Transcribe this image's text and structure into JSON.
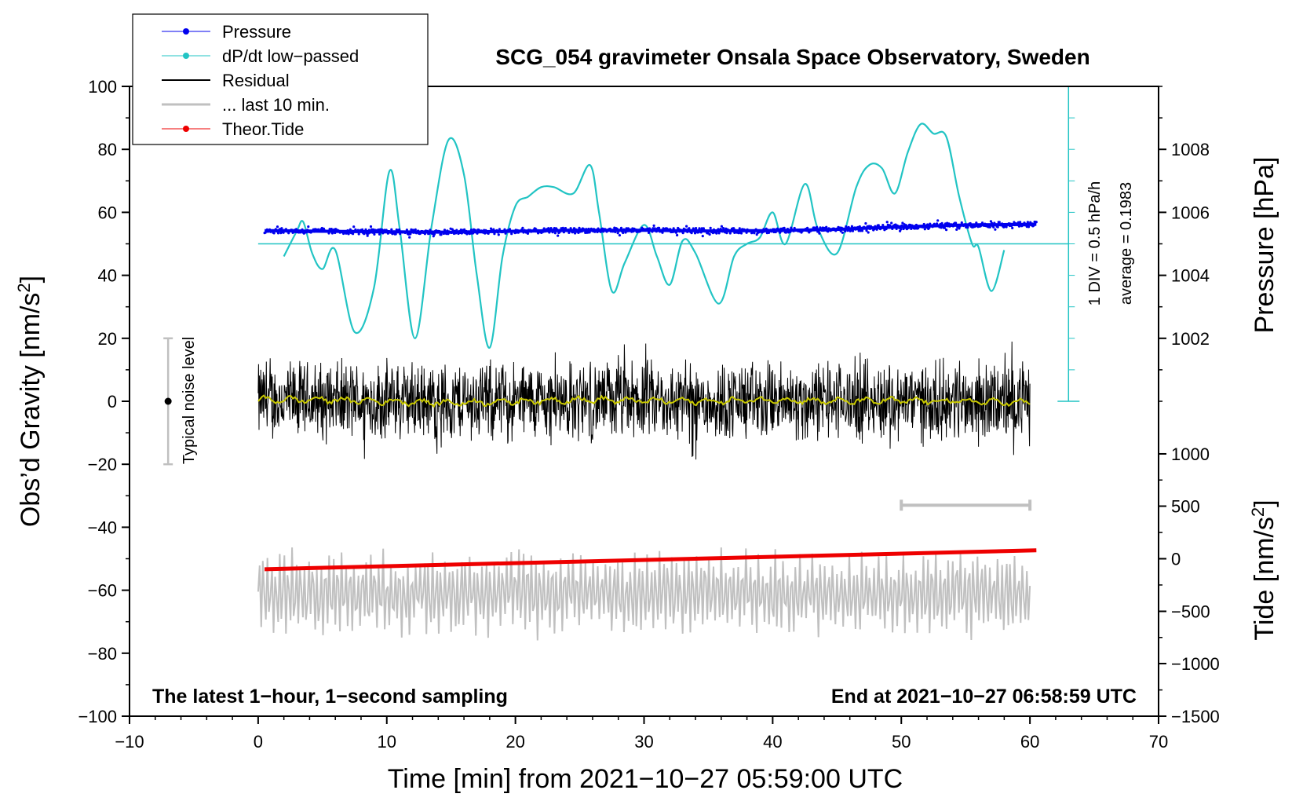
{
  "chart_data": {
    "type": "line",
    "title": "SCG_054 gravimeter Onsala Space Observatory, Sweden",
    "xlabel": "Time [min] from 2021−10−27 05:59:00 UTC",
    "ylabel": "Obs’d Gravity [nm/s",
    "ylabel_sup": "2",
    "ylabel_close": "]",
    "xlim": [
      -10,
      70
    ],
    "ylim": [
      -100,
      100
    ],
    "x_ticks": [
      -10,
      0,
      10,
      20,
      30,
      40,
      50,
      60,
      70
    ],
    "x_tick_labels": [
      "−10",
      "0",
      "10",
      "20",
      "30",
      "40",
      "50",
      "60",
      "70"
    ],
    "y_ticks": [
      100,
      80,
      60,
      40,
      20,
      0,
      -20,
      -40,
      -60,
      -80,
      -100
    ],
    "y_tick_labels": [
      "100",
      "80",
      "60",
      "40",
      "20",
      "0",
      "−20",
      "−40",
      "−60",
      "−80",
      "−100"
    ],
    "pressure_axis": {
      "label": "Pressure [hPa]",
      "ticks": [
        1008,
        1006,
        1004,
        1002
      ],
      "tick_labels": [
        "1008",
        "1006",
        "1004",
        "1002"
      ],
      "gravity_at_ticks": [
        80,
        60,
        40,
        20
      ]
    },
    "tide_axis": {
      "label": "Tide [nm/s",
      "label_sup": "2",
      "label_close": "]",
      "ticks": [
        1000,
        500,
        0,
        -500,
        -1000,
        -1500
      ],
      "tick_labels": [
        "1000",
        "500",
        "0",
        "−500",
        "−1000",
        "−1500"
      ],
      "gravity_at_ticks": [
        -16.7,
        -33.3,
        -50,
        -66.7,
        -83.3,
        -100
      ]
    },
    "legend": {
      "position": "top-left",
      "entries": [
        {
          "label": "Pressure",
          "color": "#0000ee",
          "marker": true
        },
        {
          "label": "dP/dt low−passed",
          "color": "#22c4c4",
          "marker": true
        },
        {
          "label": "Residual",
          "color": "#000000",
          "marker": false
        },
        {
          "label": "... last 10 min.",
          "color": "#c0c0c0",
          "marker": false
        },
        {
          "label": "Theor.Tide",
          "color": "#ee0000",
          "marker": true
        }
      ]
    },
    "annotations": {
      "bottom_left": "The latest 1−hour, 1−second sampling",
      "bottom_right": "End at 2021−10−27 06:58:59 UTC",
      "noise_label": "Typical noise level",
      "dpdt_scale": "1 DIV = 0.5 hPa/h",
      "dpdt_average": "average = 0.1983"
    },
    "noise_bar": {
      "x": -7,
      "center": 0,
      "low": -20,
      "high": 20
    },
    "dpdt_scale_axis": {
      "x": 63,
      "low": 0,
      "high": 100,
      "baseline": 50
    },
    "last10_bar": {
      "x_start": 50,
      "x_end": 60,
      "y": -33
    },
    "series": [
      {
        "name": "Pressure",
        "color": "#0000ee",
        "x": [
          0.5,
          5,
          10,
          15,
          20,
          25,
          30,
          35,
          40,
          45,
          50,
          55,
          60.5
        ],
        "values": [
          54.2,
          54.0,
          53.8,
          53.7,
          54.0,
          54.3,
          54.3,
          54.1,
          54.2,
          54.6,
          55.4,
          56.0,
          56.2
        ],
        "scatter": 0.8
      },
      {
        "name": "dP/dt low−passed",
        "color": "#22c4c4",
        "x": [
          2,
          3,
          3.5,
          4.2,
          5,
          6,
          7.5,
          9,
          10.2,
          11,
          12.2,
          13.5,
          14.8,
          16,
          17,
          18,
          19,
          20,
          21,
          22,
          23,
          24.5,
          25.8,
          26.5,
          27.5,
          28.5,
          30,
          31,
          32,
          33,
          34,
          35.8,
          37,
          38,
          39,
          40,
          41,
          42.5,
          43.5,
          45,
          46.5,
          47.5,
          48.5,
          49.5,
          50.5,
          51.5,
          52.5,
          53.5,
          54.5,
          55.5,
          56,
          57,
          58
        ],
        "values": [
          46,
          54,
          57,
          47,
          42,
          48,
          22,
          36,
          73,
          55,
          20,
          56,
          83,
          72,
          40,
          17,
          46,
          62,
          65,
          68,
          68,
          66,
          75,
          60,
          35,
          44,
          56,
          46,
          37,
          51,
          47,
          31,
          46,
          50,
          52,
          60,
          50,
          69,
          55,
          47,
          68,
          75,
          74,
          66,
          79,
          88,
          85,
          84,
          65,
          50,
          49,
          35,
          48
        ]
      },
      {
        "name": "Residual",
        "color": "#000000",
        "x_range": [
          0,
          60
        ],
        "center": 0,
        "amplitude": 20
      },
      {
        "name": "Residual smoothed",
        "color": "#c8c800",
        "x": [
          0,
          5,
          10,
          15,
          20,
          25,
          30,
          35,
          40,
          45,
          50,
          55,
          60
        ],
        "values": [
          0.5,
          0.5,
          0,
          -0.5,
          0,
          0.5,
          0.2,
          0,
          0.5,
          0,
          0.2,
          0,
          -0.5
        ]
      },
      {
        "name": "... last 10 min.",
        "color": "#c0c0c0",
        "x_range": [
          0,
          60
        ],
        "center": -61,
        "amplitude": 17
      },
      {
        "name": "Theor.Tide",
        "color": "#ee0000",
        "x": [
          0.5,
          60.5
        ],
        "tide_values": [
          -100,
          80
        ]
      }
    ]
  }
}
